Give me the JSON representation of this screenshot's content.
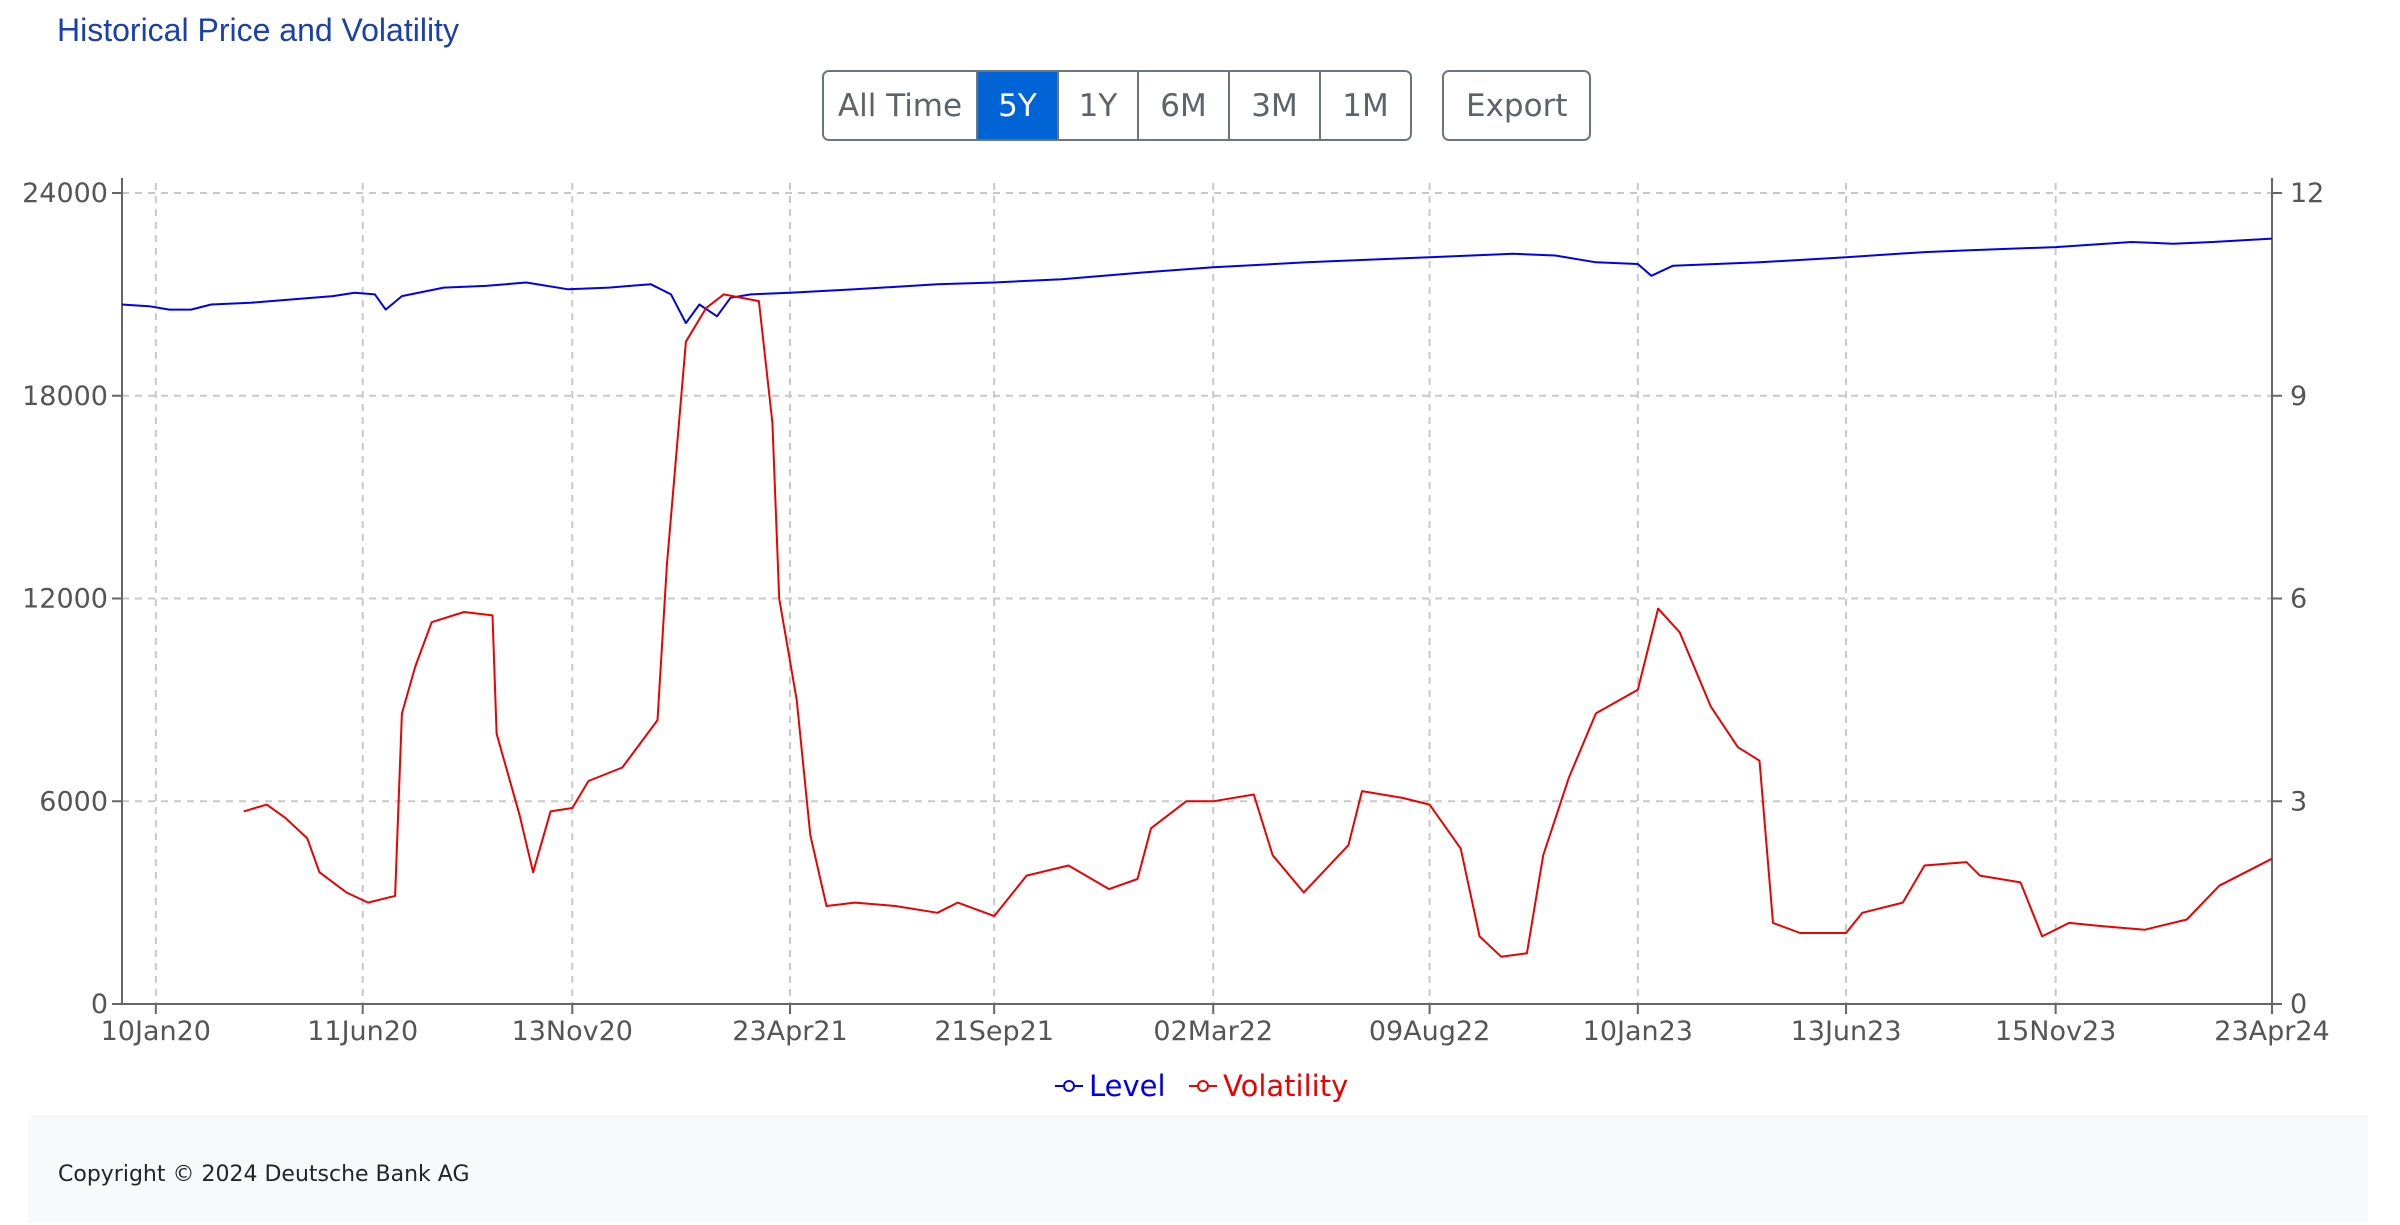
{
  "header": {
    "title": "Historical Price and Volatility"
  },
  "range_buttons": [
    {
      "label": "All Time",
      "active": false
    },
    {
      "label": "5Y",
      "active": true
    },
    {
      "label": "1Y",
      "active": false
    },
    {
      "label": "6M",
      "active": false
    },
    {
      "label": "3M",
      "active": false
    },
    {
      "label": "1M",
      "active": false
    }
  ],
  "export_label": "Export",
  "footer": {
    "copyright": "Copyright © 2024 Deutsche Bank AG"
  },
  "chart_data": {
    "type": "line",
    "title": "",
    "xlabel": "",
    "ylabel": "",
    "x_ticks": [
      "10Jan20",
      "11Jun20",
      "13Nov20",
      "23Apr21",
      "21Sep21",
      "02Mar22",
      "09Aug22",
      "10Jan23",
      "13Jun23",
      "15Nov23",
      "23Apr24"
    ],
    "xlim": [
      "2019-12-16",
      "2024-04-23"
    ],
    "y_left": {
      "ticks": [
        "0",
        "6000",
        "12000",
        "18000",
        "24000"
      ],
      "range": [
        0,
        24000
      ]
    },
    "y_right": {
      "ticks": [
        "0",
        "3",
        "6",
        "9",
        "12"
      ],
      "range": [
        0,
        12
      ]
    },
    "grid": true,
    "legend_position": "bottom-center",
    "series": [
      {
        "name": "Level",
        "axis": "left",
        "color": "#0000ee",
        "points": [
          [
            "2019-12-16",
            20700
          ],
          [
            "2020-01-05",
            20650
          ],
          [
            "2020-01-20",
            20550
          ],
          [
            "2020-02-05",
            20550
          ],
          [
            "2020-02-20",
            20700
          ],
          [
            "2020-03-20",
            20750
          ],
          [
            "2020-04-20",
            20850
          ],
          [
            "2020-05-20",
            20950
          ],
          [
            "2020-06-05",
            21050
          ],
          [
            "2020-06-20",
            21000
          ],
          [
            "2020-06-28",
            20550
          ],
          [
            "2020-07-10",
            20950
          ],
          [
            "2020-08-10",
            21200
          ],
          [
            "2020-09-10",
            21250
          ],
          [
            "2020-10-10",
            21350
          ],
          [
            "2020-11-10",
            21150
          ],
          [
            "2020-12-10",
            21200
          ],
          [
            "2021-01-10",
            21300
          ],
          [
            "2021-01-25",
            21000
          ],
          [
            "2021-02-05",
            20150
          ],
          [
            "2021-02-15",
            20700
          ],
          [
            "2021-02-28",
            20350
          ],
          [
            "2021-03-10",
            20900
          ],
          [
            "2021-03-25",
            21000
          ],
          [
            "2021-04-23",
            21050
          ],
          [
            "2021-06-10",
            21150
          ],
          [
            "2021-08-10",
            21300
          ],
          [
            "2021-09-21",
            21350
          ],
          [
            "2021-11-10",
            21450
          ],
          [
            "2022-01-10",
            21650
          ],
          [
            "2022-03-02",
            21800
          ],
          [
            "2022-05-10",
            21950
          ],
          [
            "2022-08-09",
            22100
          ],
          [
            "2022-10-10",
            22200
          ],
          [
            "2022-11-10",
            22150
          ],
          [
            "2022-12-10",
            21950
          ],
          [
            "2023-01-10",
            21900
          ],
          [
            "2023-01-20",
            21550
          ],
          [
            "2023-02-05",
            21850
          ],
          [
            "2023-04-10",
            21950
          ],
          [
            "2023-06-13",
            22100
          ],
          [
            "2023-08-10",
            22250
          ],
          [
            "2023-09-10",
            22300
          ],
          [
            "2023-11-15",
            22400
          ],
          [
            "2024-01-10",
            22550
          ],
          [
            "2024-02-10",
            22500
          ],
          [
            "2024-03-10",
            22550
          ],
          [
            "2024-04-23",
            22650
          ]
        ]
      },
      {
        "name": "Volatility",
        "axis": "right",
        "color": "#ee0000",
        "points": [
          [
            "2020-03-15",
            2.85
          ],
          [
            "2020-04-01",
            2.95
          ],
          [
            "2020-04-15",
            2.75
          ],
          [
            "2020-05-01",
            2.45
          ],
          [
            "2020-05-10",
            1.95
          ],
          [
            "2020-05-30",
            1.65
          ],
          [
            "2020-06-15",
            1.5
          ],
          [
            "2020-07-05",
            1.6
          ],
          [
            "2020-07-10",
            4.3
          ],
          [
            "2020-07-20",
            5.0
          ],
          [
            "2020-08-01",
            5.65
          ],
          [
            "2020-08-25",
            5.8
          ],
          [
            "2020-09-15",
            5.75
          ],
          [
            "2020-09-18",
            4.0
          ],
          [
            "2020-10-05",
            2.8
          ],
          [
            "2020-10-15",
            1.95
          ],
          [
            "2020-10-28",
            2.85
          ],
          [
            "2020-11-13",
            2.9
          ],
          [
            "2020-11-25",
            3.3
          ],
          [
            "2020-12-20",
            3.5
          ],
          [
            "2021-01-15",
            4.2
          ],
          [
            "2021-01-22",
            6.5
          ],
          [
            "2021-02-05",
            9.8
          ],
          [
            "2021-02-20",
            10.3
          ],
          [
            "2021-03-05",
            10.5
          ],
          [
            "2021-03-31",
            10.4
          ],
          [
            "2021-04-10",
            8.6
          ],
          [
            "2021-04-15",
            6.0
          ],
          [
            "2021-04-28",
            4.5
          ],
          [
            "2021-05-08",
            2.5
          ],
          [
            "2021-05-20",
            1.45
          ],
          [
            "2021-06-10",
            1.5
          ],
          [
            "2021-07-10",
            1.45
          ],
          [
            "2021-08-10",
            1.35
          ],
          [
            "2021-08-25",
            1.5
          ],
          [
            "2021-09-21",
            1.3
          ],
          [
            "2021-10-15",
            1.9
          ],
          [
            "2021-11-15",
            2.05
          ],
          [
            "2021-12-15",
            1.7
          ],
          [
            "2022-01-05",
            1.85
          ],
          [
            "2022-01-15",
            2.6
          ],
          [
            "2022-02-10",
            3.0
          ],
          [
            "2022-03-02",
            3.0
          ],
          [
            "2022-04-01",
            3.1
          ],
          [
            "2022-04-15",
            2.2
          ],
          [
            "2022-05-08",
            1.65
          ],
          [
            "2022-06-10",
            2.35
          ],
          [
            "2022-06-20",
            3.15
          ],
          [
            "2022-07-20",
            3.05
          ],
          [
            "2022-08-09",
            2.95
          ],
          [
            "2022-09-01",
            2.3
          ],
          [
            "2022-09-15",
            1.0
          ],
          [
            "2022-10-01",
            0.7
          ],
          [
            "2022-10-20",
            0.75
          ],
          [
            "2022-11-01",
            2.2
          ],
          [
            "2022-11-20",
            3.35
          ],
          [
            "2022-12-10",
            4.3
          ],
          [
            "2023-01-10",
            4.65
          ],
          [
            "2023-01-25",
            5.85
          ],
          [
            "2023-02-10",
            5.5
          ],
          [
            "2023-03-05",
            4.4
          ],
          [
            "2023-03-25",
            3.8
          ],
          [
            "2023-04-10",
            3.6
          ],
          [
            "2023-04-20",
            1.2
          ],
          [
            "2023-05-10",
            1.05
          ],
          [
            "2023-06-13",
            1.05
          ],
          [
            "2023-06-25",
            1.35
          ],
          [
            "2023-07-25",
            1.5
          ],
          [
            "2023-08-10",
            2.05
          ],
          [
            "2023-09-10",
            2.1
          ],
          [
            "2023-09-20",
            1.9
          ],
          [
            "2023-10-20",
            1.8
          ],
          [
            "2023-11-05",
            1.0
          ],
          [
            "2023-11-25",
            1.2
          ],
          [
            "2023-12-20",
            1.15
          ],
          [
            "2024-01-20",
            1.1
          ],
          [
            "2024-02-20",
            1.25
          ],
          [
            "2024-03-15",
            1.75
          ],
          [
            "2024-04-23",
            2.15
          ]
        ]
      }
    ]
  }
}
